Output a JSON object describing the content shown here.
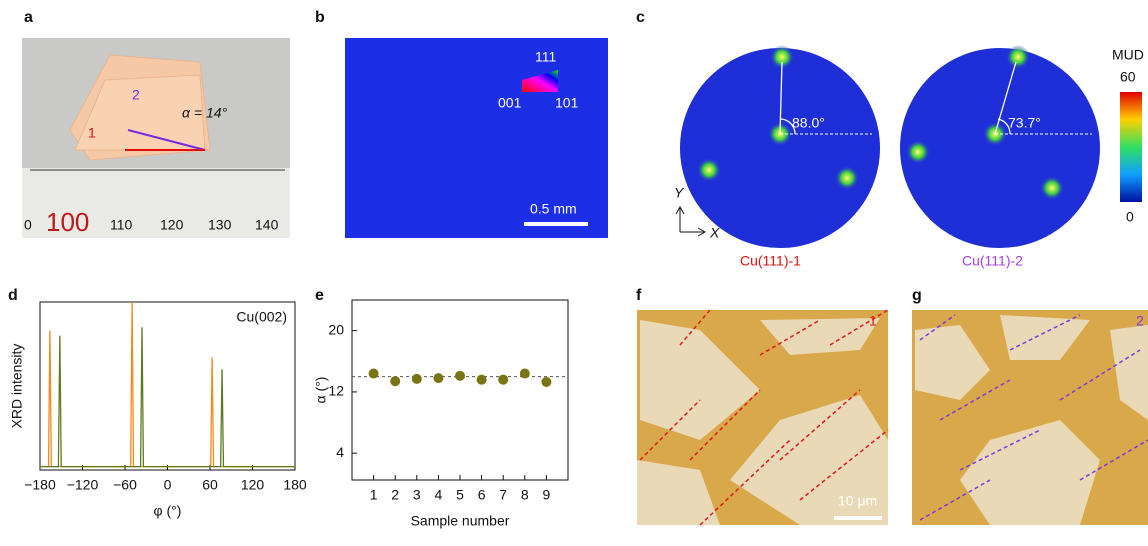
{
  "panels": {
    "labels": [
      "a",
      "b",
      "c",
      "d",
      "e",
      "f",
      "g"
    ]
  },
  "photo_a": {
    "foil_1": "1",
    "foil_2": "2",
    "angle": "α = 14°",
    "ruler": [
      "0",
      "100",
      "110",
      "120",
      "130",
      "140"
    ]
  },
  "ebsd_map": {
    "triangle": [
      "111",
      "001",
      "101"
    ],
    "scale_bar": "0.5 mm"
  },
  "pole_figures": {
    "angles": [
      "88.0°",
      "73.7°"
    ],
    "axes": [
      "Y",
      "X"
    ],
    "names": [
      "Cu(111)-1",
      "Cu(111)-2"
    ],
    "colorbar": {
      "title": "MUD",
      "labels": [
        "60",
        "0"
      ]
    }
  },
  "micrographs": {
    "f_label": "1",
    "g_label": "2",
    "scale_bar": "10 μm"
  },
  "chart_data": [
    {
      "type": "line",
      "annotation": "Cu(002)",
      "y_label": "XRD intensity",
      "x_label": "φ (°)",
      "x": [
        -180,
        -168,
        -166,
        -164,
        -154,
        -152,
        -150,
        -52,
        -50,
        -48,
        -38,
        -36,
        -34,
        61,
        63,
        65,
        75,
        77,
        79,
        180
      ],
      "xlim": [
        -180,
        180
      ],
      "ylim": [
        0,
        1
      ],
      "xticks": [
        {
          "value": -180,
          "label": "−180"
        },
        {
          "value": -120,
          "label": "−120"
        },
        {
          "value": -60,
          "label": "−60"
        },
        0,
        60,
        120,
        180
      ],
      "series": [
        {
          "color": "#f08a1c",
          "values": [
            0.02,
            0.02,
            0.83,
            0.02,
            0.02,
            0.02,
            0.02,
            0.02,
            1.0,
            0.02,
            0.02,
            0.02,
            0.02,
            0.02,
            0.67,
            0.02,
            0.02,
            0.02,
            0.02,
            0.02
          ]
        },
        {
          "color": "#5e7a1e",
          "values": [
            0.02,
            0.02,
            0.02,
            0.02,
            0.02,
            0.8,
            0.02,
            0.02,
            0.02,
            0.02,
            0.02,
            0.85,
            0.02,
            0.02,
            0.02,
            0.02,
            0.02,
            0.6,
            0.02,
            0.02
          ]
        }
      ]
    },
    {
      "type": "scatter",
      "x_label": "Sample number",
      "y_label": "α (°)",
      "x": [
        1,
        2,
        3,
        4,
        5,
        6,
        7,
        8,
        9
      ],
      "values": [
        14.4,
        13.4,
        13.7,
        13.8,
        14.1,
        13.6,
        13.6,
        14.4,
        13.3
      ],
      "xlim": [
        0,
        10
      ],
      "ylim": [
        0.5,
        24
      ],
      "xticks": [
        1,
        2,
        3,
        4,
        5,
        6,
        7,
        8,
        9
      ],
      "yticks": [
        4,
        12,
        20
      ],
      "reference_line": 14,
      "color": "#7a7414"
    }
  ]
}
